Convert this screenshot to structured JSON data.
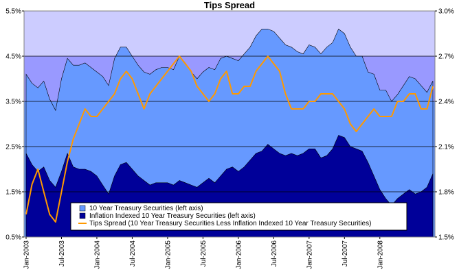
{
  "chart_data": {
    "type": "area",
    "title": "Tips Spread",
    "xlabel": "",
    "ylabel": "",
    "y_left": {
      "ticks": [
        "0.5%",
        "1.5%",
        "2.5%",
        "3.5%",
        "4.5%",
        "5.5%"
      ],
      "range": [
        0.5,
        5.5
      ],
      "unit": "%"
    },
    "y_right": {
      "ticks": [
        "1.5%",
        "1.8%",
        "2.1%",
        "2.4%",
        "2.7%",
        "3.0%"
      ],
      "range": [
        1.5,
        3.0
      ],
      "unit": "%"
    },
    "x_ticks": [
      "Jan-2003",
      "Jul-2003",
      "Jan-2004",
      "Jul-2004",
      "Jan-2005",
      "Jul-2005",
      "Jan-2006",
      "Jul-2006",
      "Jan-2007",
      "Jul-2007",
      "Jan-2008"
    ],
    "x_range": [
      "2003-01",
      "2008-10"
    ],
    "grid": "horizontal",
    "legend_position": "bottom",
    "colors": {
      "plot_background": "#ccccff",
      "treasury": "#6699ff",
      "inflation_indexed": "#000099",
      "tips_spread": "#ff9900",
      "band_top": "#ccccff",
      "band_mid": "#9999ff"
    },
    "months": [
      "2003-01",
      "2003-02",
      "2003-03",
      "2003-04",
      "2003-05",
      "2003-06",
      "2003-07",
      "2003-08",
      "2003-09",
      "2003-10",
      "2003-11",
      "2003-12",
      "2004-01",
      "2004-02",
      "2004-03",
      "2004-04",
      "2004-05",
      "2004-06",
      "2004-07",
      "2004-08",
      "2004-09",
      "2004-10",
      "2004-11",
      "2004-12",
      "2005-01",
      "2005-02",
      "2005-03",
      "2005-04",
      "2005-05",
      "2005-06",
      "2005-07",
      "2005-08",
      "2005-09",
      "2005-10",
      "2005-11",
      "2005-12",
      "2006-01",
      "2006-02",
      "2006-03",
      "2006-04",
      "2006-05",
      "2006-06",
      "2006-07",
      "2006-08",
      "2006-09",
      "2006-10",
      "2006-11",
      "2006-12",
      "2007-01",
      "2007-02",
      "2007-03",
      "2007-04",
      "2007-05",
      "2007-06",
      "2007-07",
      "2007-08",
      "2007-09",
      "2007-10",
      "2007-11",
      "2007-12",
      "2008-01",
      "2008-02",
      "2008-03",
      "2008-04",
      "2008-05",
      "2008-06",
      "2008-07",
      "2008-08",
      "2008-09",
      "2008-10"
    ],
    "series": [
      {
        "name": "10 Year Treasury Securities (left axis)",
        "axis": "left",
        "values": [
          4.1,
          3.9,
          3.8,
          3.95,
          3.55,
          3.3,
          4.0,
          4.45,
          4.3,
          4.3,
          4.35,
          4.25,
          4.15,
          4.05,
          3.85,
          4.45,
          4.7,
          4.7,
          4.5,
          4.3,
          4.15,
          4.1,
          4.2,
          4.25,
          4.25,
          4.2,
          4.5,
          4.35,
          4.15,
          4.0,
          4.15,
          4.25,
          4.2,
          4.45,
          4.5,
          4.45,
          4.4,
          4.55,
          4.7,
          4.95,
          5.1,
          5.1,
          5.05,
          4.9,
          4.75,
          4.7,
          4.6,
          4.55,
          4.75,
          4.7,
          4.55,
          4.7,
          4.8,
          5.1,
          5.0,
          4.7,
          4.5,
          4.5,
          4.15,
          4.1,
          3.75,
          3.75,
          3.5,
          3.65,
          3.85,
          4.05,
          4.0,
          3.85,
          3.7,
          3.95
        ]
      },
      {
        "name": "Inflation Indexed 10 Year Treasury Securities (left axis)",
        "axis": "left",
        "values": [
          2.35,
          2.1,
          1.95,
          2.05,
          1.75,
          1.6,
          1.95,
          2.35,
          2.05,
          2.0,
          2.0,
          1.95,
          1.85,
          1.65,
          1.45,
          1.85,
          2.1,
          2.15,
          2.0,
          1.85,
          1.75,
          1.65,
          1.7,
          1.7,
          1.7,
          1.65,
          1.75,
          1.7,
          1.65,
          1.6,
          1.7,
          1.8,
          1.7,
          1.85,
          2.0,
          2.05,
          1.95,
          2.05,
          2.2,
          2.35,
          2.4,
          2.55,
          2.45,
          2.35,
          2.3,
          2.35,
          2.3,
          2.35,
          2.45,
          2.45,
          2.25,
          2.3,
          2.45,
          2.75,
          2.7,
          2.5,
          2.45,
          2.4,
          2.15,
          1.85,
          1.55,
          1.35,
          1.2,
          1.35,
          1.45,
          1.55,
          1.45,
          1.5,
          1.6,
          1.9
        ]
      },
      {
        "name": "Tips Spread (10 Year Treasury Securities Less Inflation Indexed 10 Year Treasury Securities)",
        "axis": "right",
        "values": [
          1.65,
          1.85,
          1.95,
          1.8,
          1.65,
          1.6,
          1.8,
          2.0,
          2.15,
          2.25,
          2.35,
          2.3,
          2.3,
          2.35,
          2.4,
          2.45,
          2.55,
          2.6,
          2.55,
          2.45,
          2.35,
          2.45,
          2.5,
          2.55,
          2.6,
          2.65,
          2.7,
          2.65,
          2.6,
          2.5,
          2.45,
          2.4,
          2.45,
          2.55,
          2.6,
          2.45,
          2.45,
          2.5,
          2.5,
          2.6,
          2.65,
          2.7,
          2.65,
          2.6,
          2.45,
          2.35,
          2.35,
          2.35,
          2.4,
          2.4,
          2.45,
          2.45,
          2.45,
          2.4,
          2.35,
          2.25,
          2.2,
          2.25,
          2.3,
          2.35,
          2.3,
          2.3,
          2.3,
          2.4,
          2.4,
          2.45,
          2.45,
          2.35,
          2.35,
          2.5
        ]
      }
    ]
  }
}
